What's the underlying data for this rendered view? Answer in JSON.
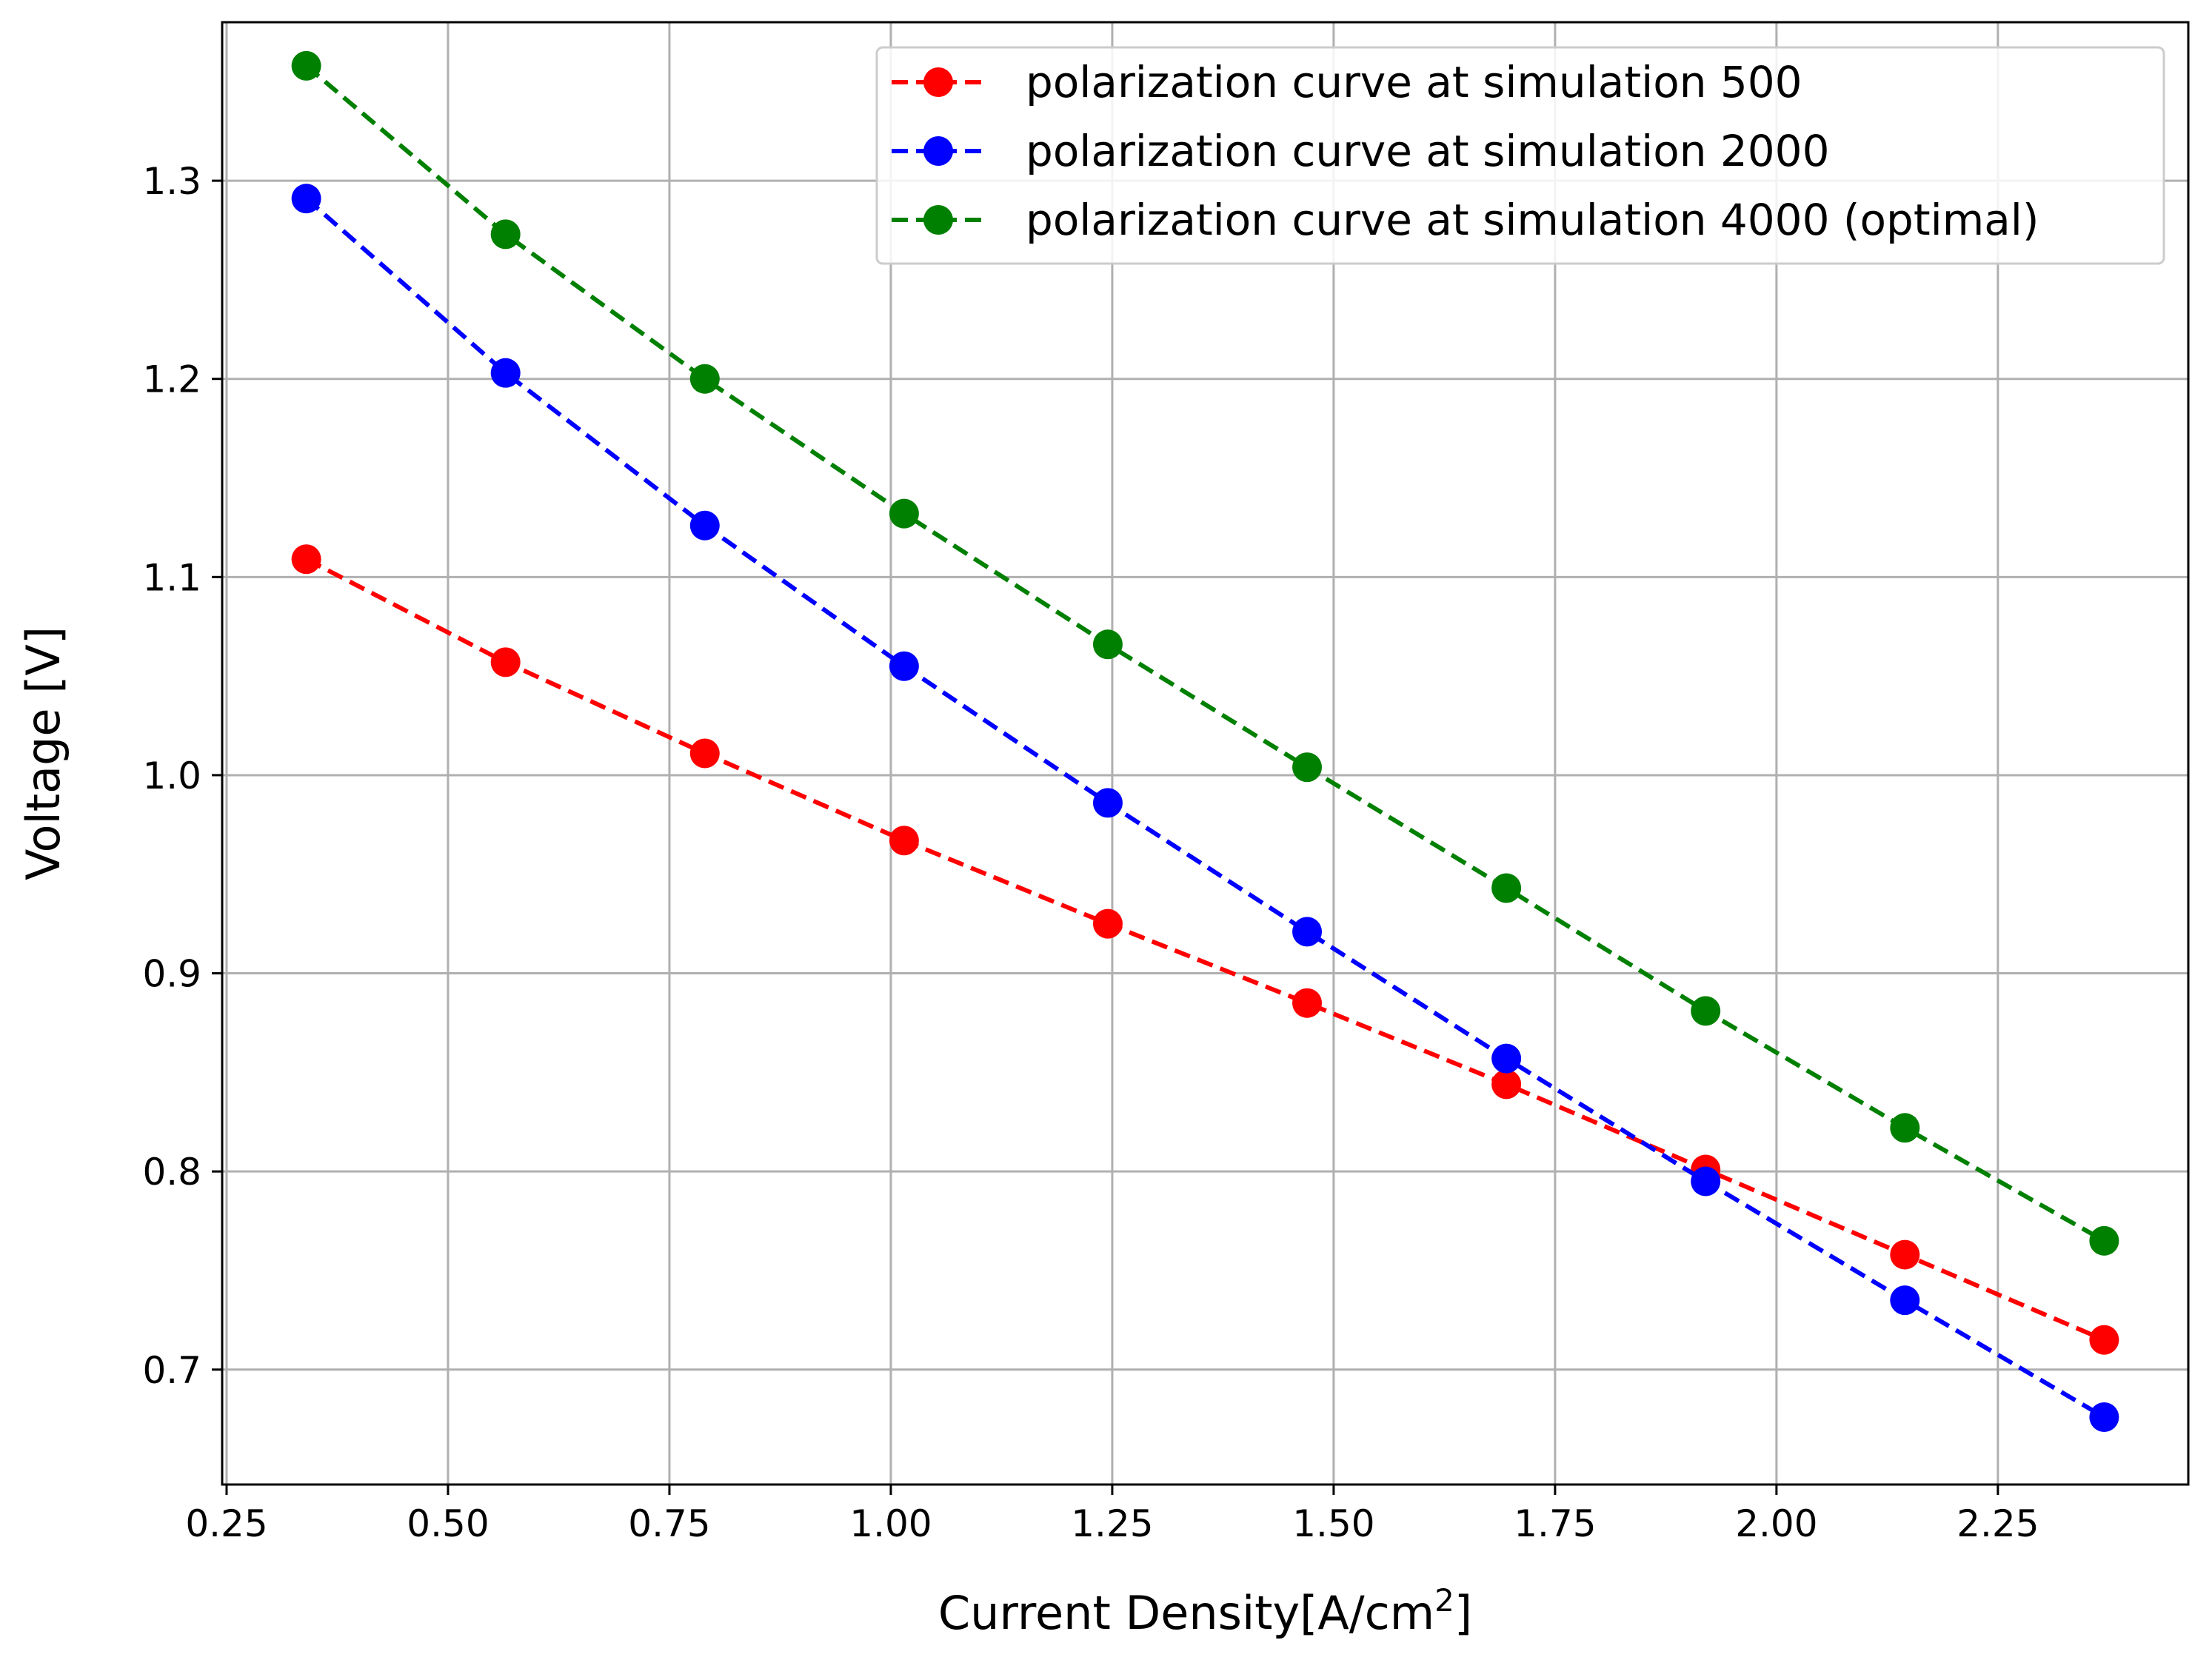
{
  "chart_data": {
    "type": "line",
    "title": "",
    "xlabel": "Current Density[A/cm",
    "xlabel_superscript": "2",
    "xlabel_suffix": "]",
    "ylabel": "Voltage [V]",
    "xlim": [
      0.245,
      2.465
    ],
    "ylim": [
      0.642,
      1.38
    ],
    "xticks": [
      0.25,
      0.5,
      0.75,
      1.0,
      1.25,
      1.5,
      1.75,
      2.0,
      2.25
    ],
    "xtick_labels": [
      "0.25",
      "0.50",
      "0.75",
      "1.00",
      "1.25",
      "1.50",
      "1.75",
      "2.00",
      "2.25"
    ],
    "yticks": [
      0.7,
      0.8,
      0.9,
      1.0,
      1.1,
      1.2,
      1.3
    ],
    "ytick_labels": [
      "0.7",
      "0.8",
      "0.9",
      "1.0",
      "1.1",
      "1.2",
      "1.3"
    ],
    "grid": true,
    "legend_position": "top-right",
    "x": [
      0.34,
      0.565,
      0.79,
      1.015,
      1.245,
      1.47,
      1.695,
      1.92,
      2.145,
      2.37
    ],
    "series": [
      {
        "name": "polarization curve at simulation 500",
        "color": "#ff0000",
        "values": [
          1.109,
          1.057,
          1.011,
          0.967,
          0.925,
          0.885,
          0.844,
          0.801,
          0.758,
          0.715
        ]
      },
      {
        "name": "polarization curve at simulation 2000",
        "color": "#0000ff",
        "values": [
          1.291,
          1.203,
          1.126,
          1.055,
          0.986,
          0.921,
          0.857,
          0.795,
          0.735,
          0.676
        ]
      },
      {
        "name": "polarization curve at simulation 4000 (optimal)",
        "color": "#008000",
        "values": [
          1.358,
          1.273,
          1.2,
          1.132,
          1.066,
          1.004,
          0.943,
          0.881,
          0.822,
          0.765
        ]
      }
    ]
  }
}
